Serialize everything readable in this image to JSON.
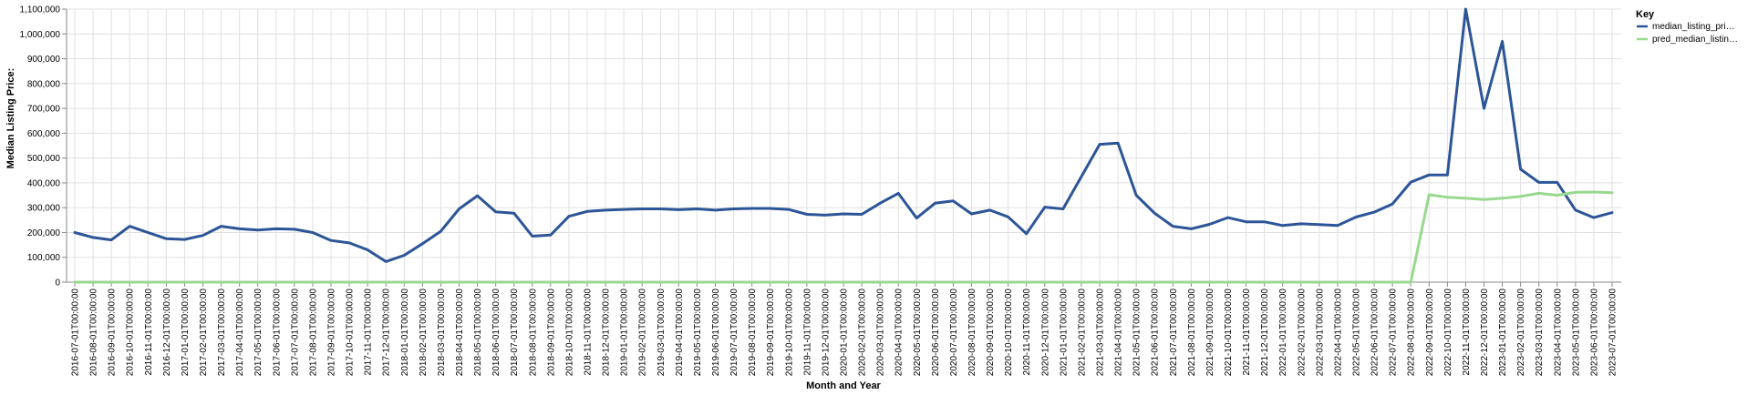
{
  "chart_data": {
    "type": "line",
    "xlabel": "Month and Year",
    "ylabel": "Median Listing Price:",
    "ylim": [
      0,
      1100000
    ],
    "y_ticks": [
      "0",
      "100,000",
      "200,000",
      "300,000",
      "400,000",
      "500,000",
      "600,000",
      "700,000",
      "800,000",
      "900,000",
      "1,000,000",
      "1,100,000"
    ],
    "grid": true,
    "legend": {
      "title": "Key",
      "placement": "top-right",
      "entries": [
        "median_listing_pri…",
        "pred_median_listin…"
      ]
    },
    "x": [
      "2016-07-01T00:00:00",
      "2016-08-01T00:00:00",
      "2016-09-01T00:00:00",
      "2016-10-01T00:00:00",
      "2016-11-01T00:00:00",
      "2016-12-01T00:00:00",
      "2017-01-01T00:00:00",
      "2017-02-01T00:00:00",
      "2017-03-01T00:00:00",
      "2017-04-01T00:00:00",
      "2017-05-01T00:00:00",
      "2017-06-01T00:00:00",
      "2017-07-01T00:00:00",
      "2017-08-01T00:00:00",
      "2017-09-01T00:00:00",
      "2017-10-01T00:00:00",
      "2017-11-01T00:00:00",
      "2017-12-01T00:00:00",
      "2018-01-01T00:00:00",
      "2018-02-01T00:00:00",
      "2018-03-01T00:00:00",
      "2018-04-01T00:00:00",
      "2018-05-01T00:00:00",
      "2018-06-01T00:00:00",
      "2018-07-01T00:00:00",
      "2018-08-01T00:00:00",
      "2018-09-01T00:00:00",
      "2018-10-01T00:00:00",
      "2018-11-01T00:00:00",
      "2018-12-01T00:00:00",
      "2019-01-01T00:00:00",
      "2019-02-01T00:00:00",
      "2019-03-01T00:00:00",
      "2019-04-01T00:00:00",
      "2019-05-01T00:00:00",
      "2019-06-01T00:00:00",
      "2019-07-01T00:00:00",
      "2019-08-01T00:00:00",
      "2019-09-01T00:00:00",
      "2019-10-01T00:00:00",
      "2019-11-01T00:00:00",
      "2019-12-01T00:00:00",
      "2020-01-01T00:00:00",
      "2020-02-01T00:00:00",
      "2020-03-01T00:00:00",
      "2020-04-01T00:00:00",
      "2020-05-01T00:00:00",
      "2020-06-01T00:00:00",
      "2020-07-01T00:00:00",
      "2020-08-01T00:00:00",
      "2020-09-01T00:00:00",
      "2020-10-01T00:00:00",
      "2020-11-01T00:00:00",
      "2020-12-01T00:00:00",
      "2021-01-01T00:00:00",
      "2021-02-01T00:00:00",
      "2021-03-01T00:00:00",
      "2021-04-01T00:00:00",
      "2021-05-01T00:00:00",
      "2021-06-01T00:00:00",
      "2021-07-01T00:00:00",
      "2021-08-01T00:00:00",
      "2021-09-01T00:00:00",
      "2021-10-01T00:00:00",
      "2021-11-01T00:00:00",
      "2021-12-01T00:00:00",
      "2022-01-01T00:00:00",
      "2022-02-01T00:00:00",
      "2022-03-01T00:00:00",
      "2022-04-01T00:00:00",
      "2022-05-01T00:00:00",
      "2022-06-01T00:00:00",
      "2022-07-01T00:00:00",
      "2022-08-01T00:00:00",
      "2022-09-01T00:00:00",
      "2022-10-01T00:00:00",
      "2022-11-01T00:00:00",
      "2022-12-01T00:00:00",
      "2023-01-01T00:00:00",
      "2023-02-01T00:00:00",
      "2023-03-01T00:00:00",
      "2023-04-01T00:00:00",
      "2023-05-01T00:00:00",
      "2023-06-01T00:00:00",
      "2023-07-01T00:00:00"
    ],
    "series": [
      {
        "name": "median_listing_pri…",
        "color": "#2c5597",
        "values": [
          200000,
          180000,
          170000,
          225000,
          200000,
          175000,
          172000,
          188000,
          225000,
          215000,
          210000,
          215000,
          213000,
          200000,
          168000,
          158000,
          130000,
          83000,
          108000,
          155000,
          205000,
          295000,
          348000,
          283000,
          278000,
          185000,
          190000,
          265000,
          285000,
          290000,
          293000,
          295000,
          295000,
          292000,
          295000,
          290000,
          295000,
          297000,
          297000,
          293000,
          273000,
          270000,
          275000,
          273000,
          318000,
          358000,
          258000,
          318000,
          327000,
          275000,
          290000,
          263000,
          195000,
          302000,
          295000,
          425000,
          555000,
          560000,
          350000,
          278000,
          225000,
          215000,
          233000,
          260000,
          243000,
          243000,
          228000,
          235000,
          232000,
          228000,
          262000,
          282000,
          315000,
          403000,
          432000,
          432000,
          1100000,
          700000,
          970000,
          455000,
          402000,
          402000,
          290000,
          260000,
          280000
        ]
      },
      {
        "name": "pred_median_listin…",
        "color": "#98d98e",
        "values": [
          0,
          0,
          0,
          0,
          0,
          0,
          0,
          0,
          0,
          0,
          0,
          0,
          0,
          0,
          0,
          0,
          0,
          0,
          0,
          0,
          0,
          0,
          0,
          0,
          0,
          0,
          0,
          0,
          0,
          0,
          0,
          0,
          0,
          0,
          0,
          0,
          0,
          0,
          0,
          0,
          0,
          0,
          0,
          0,
          0,
          0,
          0,
          0,
          0,
          0,
          0,
          0,
          0,
          0,
          0,
          0,
          0,
          0,
          0,
          0,
          0,
          0,
          0,
          0,
          0,
          0,
          0,
          0,
          0,
          0,
          0,
          0,
          0,
          0,
          352000,
          342000,
          338000,
          333000,
          338000,
          345000,
          358000,
          350000,
          362000,
          363000,
          360000
        ]
      }
    ]
  }
}
